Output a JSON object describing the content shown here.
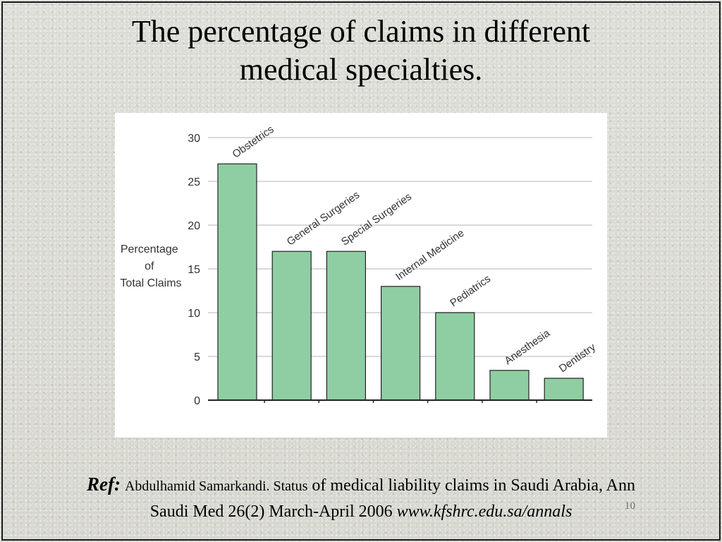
{
  "slide": {
    "title_line1": "The percentage of claims in different",
    "title_line2": "medical specialties.",
    "page_number": "10"
  },
  "reference": {
    "label": "Ref:",
    "author": "Abdulhamid Samarkandi. Status",
    "text1": " of medical liability claims in Saudi Arabia, Ann",
    "text2": "Saudi Med 26(2) March-April 2006 ",
    "link": "www.kfshrc.edu.sa/annals"
  },
  "colors": {
    "bar_fill": "#8fcea3",
    "bar_stroke": "#222222",
    "grid": "#d9d9d9",
    "axis": "#222222",
    "text": "#333333"
  },
  "chart_data": {
    "type": "bar",
    "categories": [
      "Obstetrics",
      "General Surgeries",
      "Special Surgeries",
      "Internal Medicine",
      "Pediatrics",
      "Anesthesia",
      "Dentistry"
    ],
    "values": [
      27,
      17,
      17,
      13,
      10,
      3.4,
      2.5
    ],
    "ylabel_lines": [
      "Percentage",
      "of",
      "Total Claims"
    ],
    "yticks": [
      "0",
      "5",
      "10",
      "15",
      "20",
      "25",
      "30"
    ],
    "ylim": [
      0,
      30
    ],
    "grid": true,
    "label_placement": "rotated above bars"
  }
}
